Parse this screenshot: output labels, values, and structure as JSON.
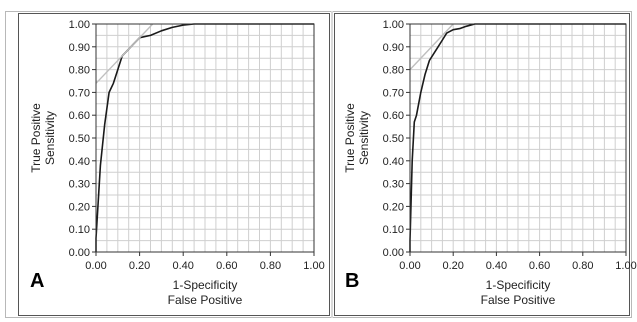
{
  "chart_data": [
    {
      "type": "line",
      "panel_label": "A",
      "xlabel_line1": "1-Specificity",
      "xlabel_line2": "False Positive",
      "ylabel_line1": "True Positive",
      "ylabel_line2": "Sensitivity",
      "xlim": [
        0,
        1
      ],
      "ylim": [
        0,
        1
      ],
      "x_ticks": [
        "0.00",
        "0.20",
        "0.40",
        "0.60",
        "0.80",
        "1.00"
      ],
      "y_ticks": [
        "0.00",
        "0.10",
        "0.20",
        "0.30",
        "0.40",
        "0.50",
        "0.60",
        "0.70",
        "0.80",
        "0.90",
        "1.00"
      ],
      "grid": true,
      "series": [
        {
          "role": "roc-curve",
          "color": "#1a1a1a",
          "x": [
            0.0,
            0.0,
            0.02,
            0.04,
            0.06,
            0.08,
            0.1,
            0.12,
            0.14,
            0.16,
            0.2,
            0.25,
            0.3,
            0.35,
            0.4,
            0.45,
            1.0
          ],
          "y": [
            0.0,
            0.06,
            0.38,
            0.56,
            0.7,
            0.74,
            0.8,
            0.86,
            0.88,
            0.9,
            0.94,
            0.95,
            0.97,
            0.985,
            0.995,
            1.0,
            1.0
          ]
        },
        {
          "role": "tangent-line",
          "color": "#bfbfbf",
          "x": [
            0.0,
            0.26
          ],
          "y": [
            0.74,
            1.0
          ]
        }
      ]
    },
    {
      "type": "line",
      "panel_label": "B",
      "xlabel_line1": "1-Specificity",
      "xlabel_line2": "False Positive",
      "ylabel_line1": "True Positive",
      "ylabel_line2": "Sensitivity",
      "xlim": [
        0,
        1
      ],
      "ylim": [
        0,
        1
      ],
      "x_ticks": [
        "0.00",
        "0.20",
        "0.40",
        "0.60",
        "0.80",
        "1.00"
      ],
      "y_ticks": [
        "0.00",
        "0.10",
        "0.20",
        "0.30",
        "0.40",
        "0.50",
        "0.60",
        "0.70",
        "0.80",
        "0.90",
        "1.00"
      ],
      "grid": true,
      "series": [
        {
          "role": "roc-curve",
          "color": "#1a1a1a",
          "x": [
            0.0,
            0.0,
            0.01,
            0.02,
            0.03,
            0.05,
            0.07,
            0.09,
            0.11,
            0.13,
            0.15,
            0.17,
            0.2,
            0.23,
            0.26,
            0.3,
            1.0
          ],
          "y": [
            0.0,
            0.05,
            0.4,
            0.57,
            0.6,
            0.7,
            0.78,
            0.84,
            0.87,
            0.9,
            0.93,
            0.96,
            0.975,
            0.98,
            0.99,
            1.0,
            1.0
          ]
        },
        {
          "role": "tangent-line",
          "color": "#bfbfbf",
          "x": [
            0.0,
            0.2
          ],
          "y": [
            0.8,
            1.0
          ]
        }
      ]
    }
  ]
}
